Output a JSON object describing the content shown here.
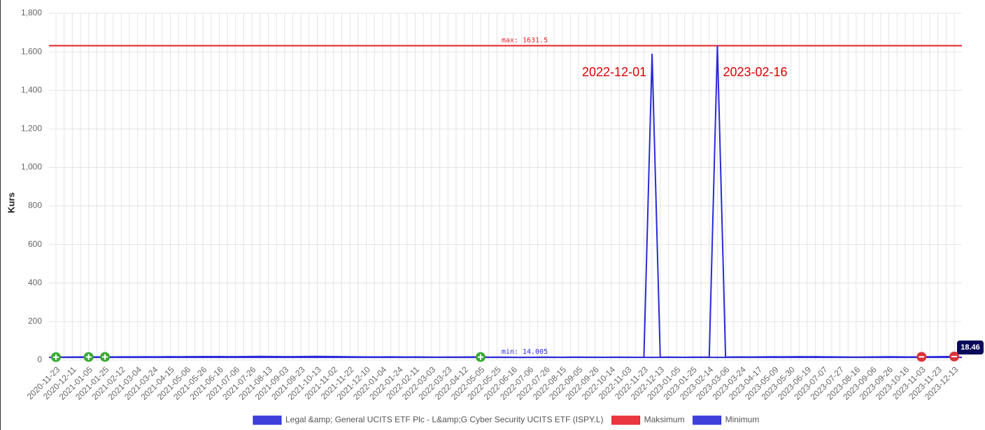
{
  "chart_data": {
    "type": "line",
    "y_label": "Kurs",
    "categories": [
      "2020-11-23",
      null,
      "2020-12-11",
      null,
      "2021-01-05",
      null,
      "2021-01-25",
      null,
      "2021-02-12",
      null,
      "2021-03-04",
      null,
      "2021-03-24",
      null,
      "2021-04-15",
      null,
      "2021-05-06",
      null,
      "2021-05-26",
      null,
      "2021-06-16",
      null,
      "2021-07-06",
      null,
      "2021-07-26",
      null,
      "2021-08-13",
      null,
      "2021-09-03",
      null,
      "2021-09-23",
      null,
      "2021-10-13",
      null,
      "2021-11-02",
      null,
      "2021-11-22",
      null,
      "2021-12-10",
      null,
      "2022-01-04",
      null,
      "2022-01-24",
      null,
      "2022-02-11",
      null,
      "2022-03-03",
      null,
      "2022-03-23",
      null,
      "2022-04-12",
      null,
      "2022-05-05",
      null,
      "2022-05-25",
      null,
      "2022-06-16",
      null,
      "2022-07-06",
      null,
      "2022-07-26",
      null,
      "2022-08-15",
      null,
      "2022-09-05",
      null,
      "2022-09-26",
      null,
      "2022-10-14",
      null,
      "2022-11-03",
      null,
      "2022-11-23",
      null,
      "2022-12-13",
      null,
      "2023-01-05",
      null,
      "2023-01-25",
      null,
      "2023-02-14",
      null,
      "2023-03-06",
      null,
      "2023-03-24",
      null,
      "2023-04-17",
      null,
      "2023-05-09",
      null,
      "2023-05-30",
      null,
      "2023-06-19",
      null,
      "2023-07-07",
      null,
      "2023-07-27",
      null,
      "2023-08-16",
      null,
      "2023-09-06",
      null,
      "2023-09-26",
      null,
      "2023-10-16",
      null,
      "2023-11-03",
      null,
      "2023-11-23",
      null,
      "2023-12-13"
    ],
    "series": [
      {
        "name": "Legal &amp; General UCITS ETF Plc - L&amp;G Cyber Security UCITS ETF (ISPY.L)",
        "color": "#2a2ad8",
        "values": [
          15.2,
          15.6,
          15.9,
          16.3,
          16.1,
          16.5,
          16.4,
          16.2,
          16.6,
          16.8,
          16.9,
          17.1,
          17.0,
          17.3,
          17.5,
          17.4,
          17.8,
          17.9,
          18.1,
          18.3,
          18.0,
          17.6,
          17.8,
          18.2,
          18.6,
          18.9,
          18.4,
          18.1,
          17.9,
          17.5,
          18.2,
          18.5,
          19.0,
          18.7,
          18.3,
          17.6,
          17.2,
          16.8,
          16.4,
          16.1,
          16.5,
          16.9,
          16.2,
          15.8,
          16.4,
          16.0,
          15.6,
          15.2,
          15.8,
          15.5,
          15.9,
          16.3,
          15.7,
          15.1,
          15.4,
          15.0,
          14.6,
          14.005,
          14.4,
          14.9,
          15.3,
          15.0,
          14.7,
          15.2,
          15.6,
          15.1,
          14.8,
          14.5,
          14.9,
          15.2,
          14.8,
          14.6,
          14.9,
          1590,
          15.1,
          15.4,
          15.0,
          14.7,
          15.2,
          15.5,
          15.3,
          1631.5,
          15.6,
          15.9,
          16.2,
          16.0,
          16.4,
          16.8,
          17.1,
          16.9,
          17.3,
          17.6,
          17.2,
          17.5,
          17.0,
          16.6,
          16.2,
          15.8,
          15.4,
          15.9,
          16.3,
          16.8,
          17.2,
          16.9,
          16.5,
          16.1,
          16.8,
          17.4,
          17.9,
          18.2,
          18.46
        ]
      }
    ],
    "reference_lines": [
      {
        "name": "Maksimum",
        "value": 1631.5,
        "label": "max: 1631.5",
        "color": "#e8202a"
      },
      {
        "name": "Minimum",
        "value": 14.005,
        "label": "min: 14.005",
        "color": "#2a2ad8"
      }
    ],
    "annotations": [
      {
        "text": "2022-12-01",
        "color": "#e00000"
      },
      {
        "text": "2023-02-16",
        "color": "#e00000"
      }
    ],
    "markers": [
      {
        "x": "2020-11-23",
        "color": "#3aaa35",
        "symbol": "plus"
      },
      {
        "x": "2021-01-05",
        "color": "#3aaa35",
        "symbol": "plus"
      },
      {
        "x": "2021-01-25",
        "color": "#3aaa35",
        "symbol": "plus"
      },
      {
        "x": "2022-05-05",
        "color": "#3aaa35",
        "symbol": "plus"
      },
      {
        "x": "2023-11-03",
        "color": "#d9343a",
        "symbol": "minus"
      },
      {
        "x": "2023-12-13",
        "color": "#d9343a",
        "symbol": "minus"
      }
    ],
    "ylim": [
      0,
      1800
    ],
    "yticks": [
      0,
      200,
      400,
      600,
      800,
      {
        "value": 1000,
        "label": "1,000"
      },
      {
        "value": 1200,
        "label": "1,200"
      },
      {
        "value": 1400,
        "label": "1,400"
      },
      {
        "value": 1600,
        "label": "1,600"
      },
      {
        "value": 1800,
        "label": "1,800"
      }
    ],
    "grid": true
  }
}
